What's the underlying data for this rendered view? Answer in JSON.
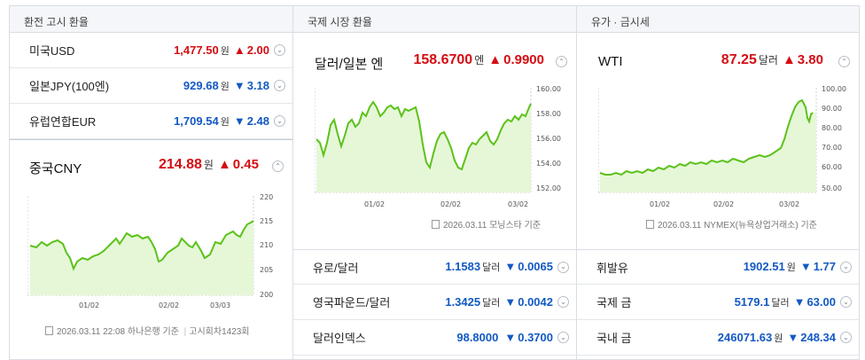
{
  "col1": {
    "header": "환전 고시 환율",
    "rows": [
      {
        "name": "미국USD",
        "value": "1,477.50",
        "unit": "원",
        "dir": "up",
        "arrow": "▲",
        "change": "2.00"
      },
      {
        "name": "일본JPY(100엔)",
        "value": "929.68",
        "unit": "원",
        "dir": "down",
        "arrow": "▼",
        "change": "3.18"
      },
      {
        "name": "유럽연합EUR",
        "value": "1,709.54",
        "unit": "원",
        "dir": "down",
        "arrow": "▼",
        "change": "2.48"
      }
    ],
    "featured": {
      "name": "중국CNY",
      "value": "214.88",
      "unit": "원",
      "arrow": "▲",
      "change": "0.45"
    },
    "chart": {
      "y_ticks": [
        "220",
        "215",
        "210",
        "205",
        "200"
      ],
      "x_ticks": [
        "01/02",
        "02/02",
        "03/03"
      ]
    },
    "source": "2026.03.11 22:08 하나은행 기준",
    "source2": "고시회차1423회"
  },
  "col2": {
    "header": "국제 시장 환율",
    "featured": {
      "name": "달러/일본 엔",
      "value": "158.6700",
      "unit": "엔",
      "arrow": "▲",
      "change": "0.9900"
    },
    "chart": {
      "y_ticks": [
        "160.00",
        "158.00",
        "156.00",
        "154.00",
        "152.00"
      ],
      "x_ticks": [
        "01/02",
        "02/02",
        "03/02"
      ]
    },
    "source": "2026.03.11 모닝스타 기준",
    "rows": [
      {
        "name": "유로/달러",
        "value": "1.1583",
        "unit": "달러",
        "dir": "down",
        "arrow": "▼",
        "change": "0.0065"
      },
      {
        "name": "영국파운드/달러",
        "value": "1.3425",
        "unit": "달러",
        "dir": "down",
        "arrow": "▼",
        "change": "0.0042"
      },
      {
        "name": "달러인덱스",
        "value": "98.8000",
        "unit": "",
        "dir": "down",
        "arrow": "▼",
        "change": "0.3700"
      }
    ]
  },
  "col3": {
    "header": "유가 · 금시세",
    "featured": {
      "name": "WTI",
      "value": "87.25",
      "unit": "달러",
      "arrow": "▲",
      "change": "3.80"
    },
    "chart": {
      "y_ticks": [
        "100.00",
        "90.00",
        "80.00",
        "70.00",
        "60.00",
        "50.00"
      ],
      "x_ticks": [
        "01/02",
        "02/02",
        "03/02"
      ]
    },
    "source": "2026.03.11 NYMEX(뉴욕상업거래소) 기준",
    "rows": [
      {
        "name": "휘발유",
        "value": "1902.51",
        "unit": "원",
        "dir": "down",
        "arrow": "▼",
        "change": "1.77"
      },
      {
        "name": "국제 금",
        "value": "5179.1",
        "unit": "달러",
        "dir": "down",
        "arrow": "▼",
        "change": "63.00"
      },
      {
        "name": "국내 금",
        "value": "246071.63",
        "unit": "원",
        "dir": "down",
        "arrow": "▼",
        "change": "248.34"
      }
    ]
  },
  "colors": {
    "up": "#d40d12",
    "down": "#1259c3",
    "line": "#5cc21a",
    "area": "#e6f7d8"
  }
}
